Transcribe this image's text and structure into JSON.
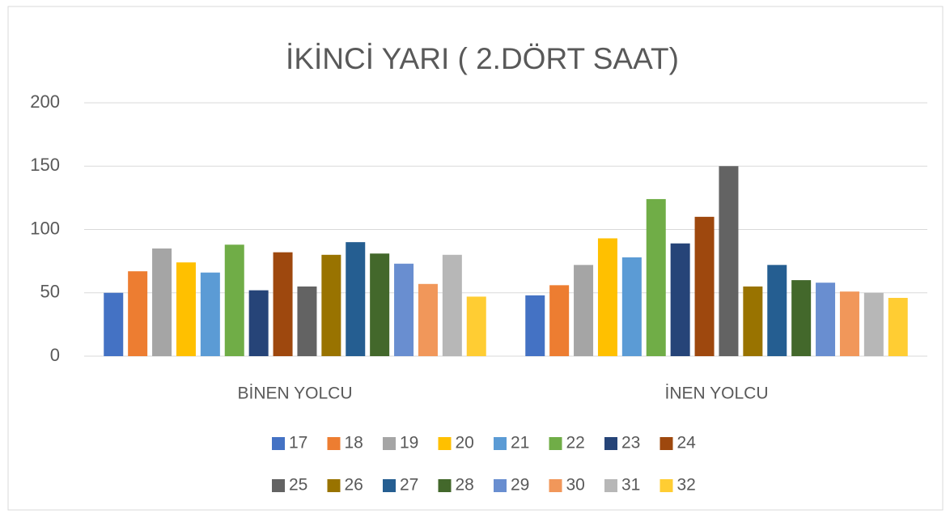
{
  "chart_data": {
    "type": "bar",
    "title": "İKİNCİ YARI ( 2.DÖRT SAAT)",
    "categories": [
      "BİNEN YOLCU",
      "İNEN YOLCU"
    ],
    "series": [
      {
        "name": "17",
        "color": "#4472c4",
        "values": [
          50,
          48
        ]
      },
      {
        "name": "18",
        "color": "#ed7d31",
        "values": [
          67,
          56
        ]
      },
      {
        "name": "19",
        "color": "#a5a5a5",
        "values": [
          85,
          72
        ]
      },
      {
        "name": "20",
        "color": "#ffc000",
        "values": [
          74,
          93
        ]
      },
      {
        "name": "21",
        "color": "#5b9bd5",
        "values": [
          66,
          78
        ]
      },
      {
        "name": "22",
        "color": "#70ad47",
        "values": [
          88,
          124
        ]
      },
      {
        "name": "23",
        "color": "#264478",
        "values": [
          52,
          89
        ]
      },
      {
        "name": "24",
        "color": "#9e480e",
        "values": [
          82,
          110
        ]
      },
      {
        "name": "25",
        "color": "#636363",
        "values": [
          55,
          150
        ]
      },
      {
        "name": "26",
        "color": "#997300",
        "values": [
          80,
          55
        ]
      },
      {
        "name": "27",
        "color": "#255e91",
        "values": [
          90,
          72
        ]
      },
      {
        "name": "28",
        "color": "#43682b",
        "values": [
          81,
          60
        ]
      },
      {
        "name": "29",
        "color": "#698ed0",
        "values": [
          73,
          58
        ]
      },
      {
        "name": "30",
        "color": "#f1975a",
        "values": [
          57,
          51
        ]
      },
      {
        "name": "31",
        "color": "#b7b7b7",
        "values": [
          80,
          50
        ]
      },
      {
        "name": "32",
        "color": "#ffcd33",
        "values": [
          47,
          46
        ]
      }
    ],
    "ylim": [
      0,
      200
    ],
    "yticks": [
      0,
      50,
      100,
      150,
      200
    ],
    "grid": true,
    "legend": "bottom"
  }
}
